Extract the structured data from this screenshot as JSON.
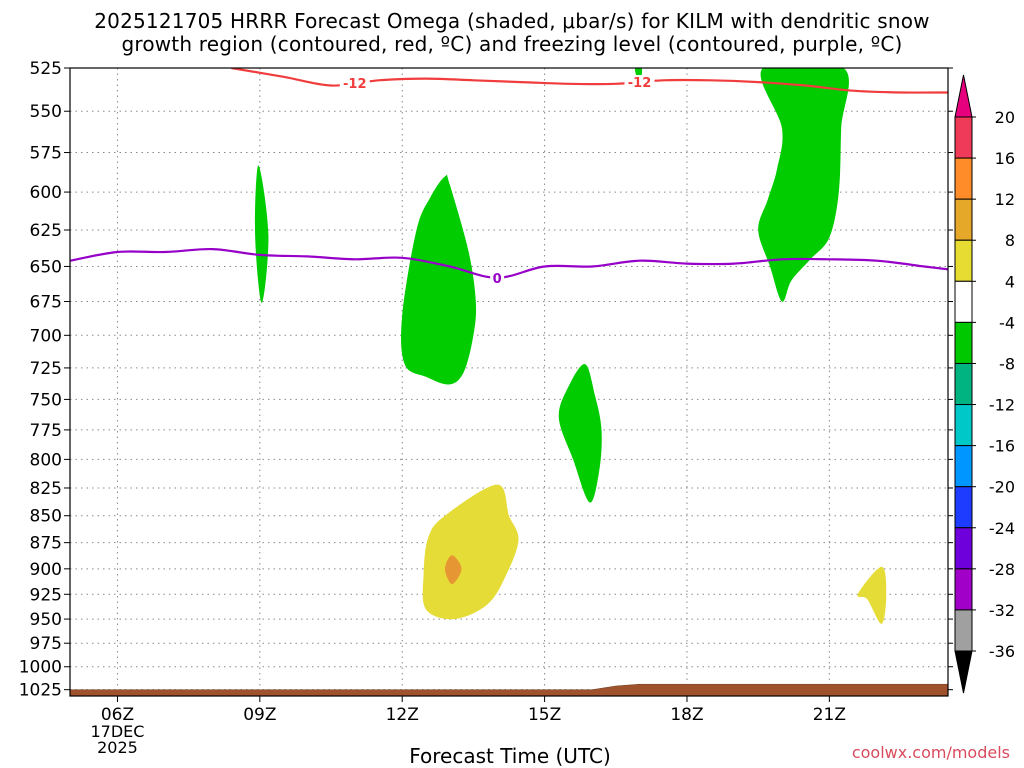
{
  "title_line1": "2025121705 HRRR Forecast Omega (shaded, μbar/s) for KILM with dendritic snow",
  "title_line2": "growth region (contoured, red, ºC) and freezing level (contoured, purple, ºC)",
  "watermark": "coolwx.com/models",
  "chart_data": {
    "type": "time-height contour",
    "xlabel": "Forecast Time (UTC)",
    "ylabel": "",
    "xlim": [
      5,
      23.5
    ],
    "ylim": [
      525,
      1032
    ],
    "y_log": true,
    "y_ticks": [
      525,
      550,
      575,
      600,
      625,
      650,
      675,
      700,
      725,
      750,
      775,
      800,
      825,
      850,
      875,
      900,
      925,
      950,
      975,
      1000,
      1025
    ],
    "x_ticks": [
      {
        "x": 6,
        "label": "06Z",
        "sub": [
          "17DEC",
          "2025"
        ]
      },
      {
        "x": 9,
        "label": "09Z"
      },
      {
        "x": 12,
        "label": "12Z"
      },
      {
        "x": 15,
        "label": "15Z"
      },
      {
        "x": 18,
        "label": "18Z"
      },
      {
        "x": 21,
        "label": "21Z"
      }
    ],
    "grid": true,
    "colorbar": {
      "labels": [
        "20",
        "16",
        "12",
        "8",
        "4",
        "-4",
        "-8",
        "-12",
        "-16",
        "-20",
        "-24",
        "-28",
        "-32",
        "-36"
      ],
      "colors": [
        "#f03a5a",
        "#ff8c28",
        "#e6a828",
        "#e6dc32",
        "#ffffff",
        "#00c800",
        "#00b482",
        "#00c8c8",
        "#0096ff",
        "#1e3cff",
        "#6e00dc",
        "#a000c8",
        "#a0a0a0"
      ],
      "top_arrow": "#e6007e",
      "bottom_arrow": "#000000"
    },
    "omega_regions": [
      {
        "value": "-4 to -8",
        "color": "#00cc00",
        "points": [
          [
            8.97,
            583
          ],
          [
            9.18,
            628
          ],
          [
            9.04,
            676
          ],
          [
            8.9,
            628
          ]
        ]
      },
      {
        "value": "-4 to -8",
        "color": "#00cc00",
        "points": [
          [
            12.9,
            590
          ],
          [
            13.0,
            595
          ],
          [
            13.4,
            640
          ],
          [
            13.55,
            675
          ],
          [
            13.5,
            700
          ],
          [
            13.3,
            728
          ],
          [
            13.0,
            738
          ],
          [
            12.5,
            732
          ],
          [
            12.05,
            722
          ],
          [
            12.0,
            685
          ],
          [
            12.3,
            625
          ],
          [
            12.6,
            603
          ]
        ]
      },
      {
        "value": "-4 to -8",
        "color": "#00cc00",
        "points": [
          [
            15.85,
            722
          ],
          [
            16.05,
            745
          ],
          [
            16.2,
            775
          ],
          [
            16.15,
            810
          ],
          [
            15.95,
            838
          ],
          [
            15.6,
            800
          ],
          [
            15.3,
            765
          ],
          [
            15.5,
            740
          ]
        ]
      },
      {
        "value": "-4 to -8",
        "color": "#00cc00",
        "points": [
          [
            16.9,
            525
          ],
          [
            17.05,
            525
          ],
          [
            17.0,
            534
          ]
        ]
      },
      {
        "value": "-4 to -8",
        "color": "#00cc00",
        "points": [
          [
            19.6,
            525
          ],
          [
            21.3,
            525
          ],
          [
            21.25,
            560
          ],
          [
            21.2,
            600
          ],
          [
            21.0,
            630
          ],
          [
            20.6,
            645
          ],
          [
            20.2,
            660
          ],
          [
            20.0,
            675
          ],
          [
            19.75,
            650
          ],
          [
            19.5,
            625
          ],
          [
            19.7,
            605
          ],
          [
            19.9,
            585
          ],
          [
            20.0,
            560
          ]
        ]
      },
      {
        "value": "4 to 8",
        "color": "#e6dc37",
        "points": [
          [
            14.0,
            822
          ],
          [
            14.25,
            850
          ],
          [
            14.45,
            872
          ],
          [
            14.2,
            905
          ],
          [
            13.8,
            935
          ],
          [
            13.1,
            950
          ],
          [
            12.5,
            940
          ],
          [
            12.45,
            905
          ],
          [
            12.55,
            870
          ],
          [
            12.9,
            850
          ]
        ]
      },
      {
        "value": "8 to 12",
        "color": "#e69632",
        "points": [
          [
            13.05,
            887
          ],
          [
            13.25,
            900
          ],
          [
            13.05,
            915
          ],
          [
            12.9,
            900
          ]
        ]
      },
      {
        "value": "4 to 8",
        "color": "#e6dc37",
        "points": [
          [
            22.1,
            898
          ],
          [
            22.2,
            925
          ],
          [
            22.1,
            955
          ],
          [
            21.8,
            930
          ],
          [
            21.6,
            925
          ]
        ]
      }
    ],
    "contours": [
      {
        "name": "dendritic snow growth region",
        "value": -12,
        "label": "-12",
        "color": "#f03c3c",
        "label_x": [
          11.0,
          17.0
        ],
        "points": [
          [
            8.4,
            525
          ],
          [
            9.5,
            530
          ],
          [
            10.5,
            535
          ],
          [
            11.5,
            532
          ],
          [
            12.5,
            531
          ],
          [
            13.5,
            532
          ],
          [
            14.5,
            533
          ],
          [
            15.5,
            534
          ],
          [
            16.5,
            534
          ],
          [
            17.5,
            532
          ],
          [
            18.5,
            532
          ],
          [
            19.5,
            533
          ],
          [
            20.5,
            535
          ],
          [
            21.5,
            538
          ],
          [
            22.5,
            539
          ],
          [
            23.5,
            539
          ]
        ]
      },
      {
        "name": "freezing level",
        "value": 0,
        "label": "0",
        "color": "#9600c8",
        "label_x": [
          14.0
        ],
        "points": [
          [
            5,
            646
          ],
          [
            6,
            640
          ],
          [
            7,
            640
          ],
          [
            8,
            638
          ],
          [
            9,
            642
          ],
          [
            10,
            643
          ],
          [
            11,
            645
          ],
          [
            12,
            644
          ],
          [
            13,
            650
          ],
          [
            14,
            658
          ],
          [
            15,
            650
          ],
          [
            16,
            650
          ],
          [
            17,
            646
          ],
          [
            18,
            648
          ],
          [
            19,
            648
          ],
          [
            20,
            645
          ],
          [
            21,
            645
          ],
          [
            22,
            646
          ],
          [
            23,
            650
          ],
          [
            23.5,
            652
          ]
        ]
      }
    ],
    "terrain": {
      "color": "#a0522d",
      "points": [
        [
          5,
          1025
        ],
        [
          16,
          1025
        ],
        [
          16.5,
          1021
        ],
        [
          17,
          1019
        ],
        [
          23.5,
          1019
        ]
      ]
    }
  }
}
